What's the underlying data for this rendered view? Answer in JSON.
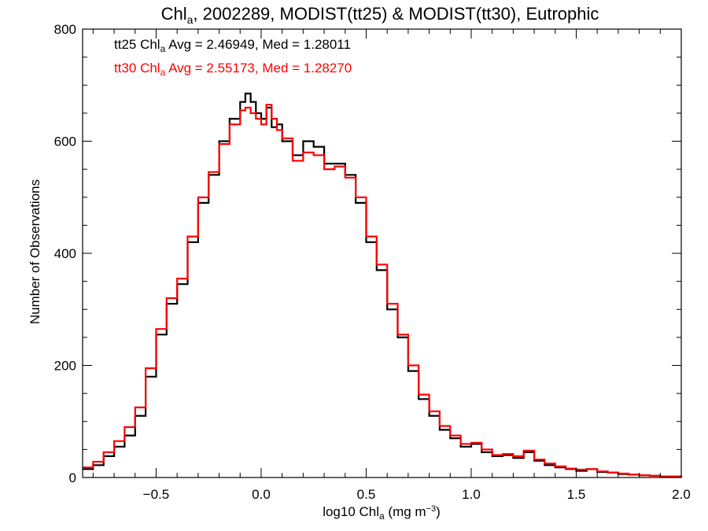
{
  "chart_data": {
    "type": "line",
    "step": true,
    "title": {
      "prefix": "Chl",
      "sub": "a",
      "suffix": ", 2002289, MODIST(tt25) & MODIST(tt30), Eutrophic"
    },
    "xlabel": {
      "prefix": "log10 Chl",
      "sub": "a",
      "suffix": " (mg m",
      "sup": "−3",
      "close": ")"
    },
    "ylabel": "Number of Observations",
    "xlim": [
      -0.85,
      2.0
    ],
    "ylim": [
      0,
      800
    ],
    "x_ticks": [
      -0.5,
      0.0,
      0.5,
      1.0,
      1.5,
      2.0
    ],
    "x_tick_labels": [
      "−0.5",
      "0.0",
      "0.5",
      "1.0",
      "1.5",
      "2.0"
    ],
    "y_ticks": [
      0,
      200,
      400,
      600,
      800
    ],
    "y_tick_labels": [
      "0",
      "200",
      "400",
      "600",
      "800"
    ],
    "grid": false,
    "legend_position": "top-left",
    "series": [
      {
        "name": "tt25",
        "color": "#000000",
        "legend": {
          "prefix": "tt25 Chl",
          "sub": "a",
          "suffix": " Avg = 2.46949, Med = 1.28011"
        },
        "x": [
          -0.85,
          -0.8,
          -0.75,
          -0.7,
          -0.65,
          -0.6,
          -0.55,
          -0.5,
          -0.45,
          -0.4,
          -0.35,
          -0.3,
          -0.25,
          -0.2,
          -0.15,
          -0.1,
          -0.075,
          -0.05,
          -0.025,
          0.0,
          0.025,
          0.05,
          0.075,
          0.1,
          0.15,
          0.2,
          0.25,
          0.3,
          0.35,
          0.4,
          0.45,
          0.5,
          0.55,
          0.6,
          0.65,
          0.7,
          0.75,
          0.8,
          0.85,
          0.9,
          0.95,
          1.0,
          1.05,
          1.1,
          1.15,
          1.2,
          1.25,
          1.3,
          1.35,
          1.4,
          1.45,
          1.5,
          1.55,
          1.6,
          1.65,
          1.7,
          1.75,
          1.8,
          1.85,
          1.9,
          1.95,
          2.0
        ],
        "y": [
          15,
          22,
          38,
          55,
          75,
          110,
          180,
          255,
          310,
          345,
          420,
          490,
          540,
          600,
          640,
          670,
          685,
          670,
          650,
          640,
          660,
          625,
          630,
          600,
          575,
          600,
          590,
          560,
          560,
          540,
          490,
          420,
          370,
          300,
          250,
          190,
          140,
          110,
          85,
          70,
          55,
          60,
          45,
          38,
          40,
          35,
          45,
          30,
          22,
          18,
          15,
          12,
          15,
          10,
          9,
          6,
          5,
          4,
          3,
          2,
          2,
          1
        ]
      },
      {
        "name": "tt30",
        "color": "#ff0000",
        "legend": {
          "prefix": "tt30 Chl",
          "sub": "a",
          "suffix": " Avg = 2.55173, Med = 1.28270"
        },
        "x": [
          -0.85,
          -0.8,
          -0.75,
          -0.7,
          -0.65,
          -0.6,
          -0.55,
          -0.5,
          -0.45,
          -0.4,
          -0.35,
          -0.3,
          -0.25,
          -0.2,
          -0.15,
          -0.1,
          -0.075,
          -0.05,
          -0.025,
          0.0,
          0.025,
          0.05,
          0.075,
          0.1,
          0.15,
          0.2,
          0.25,
          0.3,
          0.35,
          0.4,
          0.45,
          0.5,
          0.55,
          0.6,
          0.65,
          0.7,
          0.75,
          0.8,
          0.85,
          0.9,
          0.95,
          1.0,
          1.05,
          1.1,
          1.15,
          1.2,
          1.25,
          1.3,
          1.35,
          1.4,
          1.45,
          1.5,
          1.55,
          1.6,
          1.65,
          1.7,
          1.75,
          1.8,
          1.85,
          1.9,
          1.95,
          2.0
        ],
        "y": [
          18,
          28,
          45,
          65,
          90,
          125,
          195,
          265,
          320,
          355,
          430,
          500,
          545,
          595,
          630,
          655,
          660,
          650,
          640,
          630,
          665,
          640,
          620,
          605,
          565,
          580,
          575,
          550,
          555,
          535,
          500,
          430,
          380,
          310,
          255,
          200,
          148,
          118,
          92,
          75,
          60,
          62,
          50,
          40,
          42,
          38,
          48,
          32,
          25,
          20,
          16,
          14,
          15,
          11,
          9,
          7,
          5,
          4,
          3,
          2,
          2,
          1
        ]
      }
    ]
  }
}
